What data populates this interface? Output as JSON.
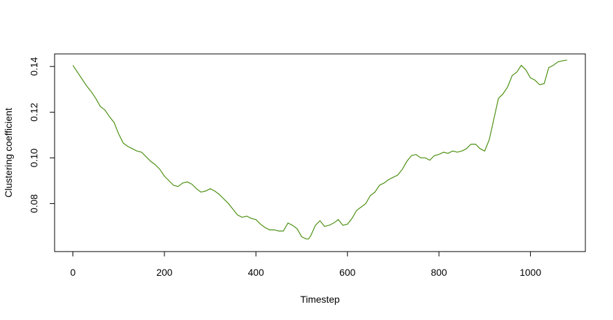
{
  "chart_data": {
    "type": "line",
    "title": "",
    "xlabel": "Timestep",
    "ylabel": "Clustering coefficient",
    "xlim": [
      -40,
      1120
    ],
    "ylim": [
      0.059,
      0.1455
    ],
    "xticks": [
      0,
      200,
      400,
      600,
      800,
      1000
    ],
    "yticks": [
      0.08,
      0.1,
      0.12,
      0.14
    ],
    "xtick_labels": [
      "0",
      "200",
      "400",
      "600",
      "800",
      "1000"
    ],
    "ytick_labels": [
      "0.08",
      "0.10",
      "0.12",
      "0.14"
    ],
    "grid": false,
    "legend": "none",
    "line_color": "#4a8f10",
    "series": [
      {
        "x": [
          0,
          10,
          20,
          30,
          40,
          50,
          60,
          70,
          80,
          90,
          100,
          110,
          120,
          130,
          140,
          150,
          160,
          170,
          180,
          190,
          200,
          210,
          220,
          230,
          240,
          250,
          260,
          270,
          280,
          290,
          300,
          310,
          320,
          330,
          340,
          350,
          360,
          370,
          380,
          390,
          400,
          410,
          420,
          430,
          440,
          450,
          460,
          470,
          480,
          490,
          500,
          510,
          515,
          520,
          530,
          540,
          550,
          560,
          570,
          580,
          590,
          600,
          610,
          620,
          630,
          640,
          650,
          660,
          670,
          680,
          690,
          700,
          710,
          720,
          730,
          740,
          750,
          760,
          770,
          780,
          790,
          800,
          810,
          820,
          830,
          840,
          850,
          860,
          870,
          880,
          890,
          900,
          910,
          920,
          930,
          940,
          950,
          960,
          970,
          980,
          990,
          1000,
          1010,
          1020,
          1030,
          1040,
          1050,
          1060,
          1070,
          1080
        ],
        "y": [
          0.1405,
          0.1375,
          0.1345,
          0.1315,
          0.129,
          0.126,
          0.1225,
          0.121,
          0.118,
          0.1155,
          0.1105,
          0.1065,
          0.105,
          0.104,
          0.103,
          0.1025,
          0.1005,
          0.0985,
          0.097,
          0.095,
          0.092,
          0.09,
          0.088,
          0.0875,
          0.089,
          0.0895,
          0.0885,
          0.0865,
          0.085,
          0.0855,
          0.0865,
          0.0855,
          0.084,
          0.082,
          0.08,
          0.0775,
          0.075,
          0.074,
          0.0745,
          0.0735,
          0.073,
          0.071,
          0.0695,
          0.0685,
          0.0685,
          0.068,
          0.068,
          0.0715,
          0.0705,
          0.069,
          0.0655,
          0.0645,
          0.0645,
          0.066,
          0.0705,
          0.0725,
          0.07,
          0.0705,
          0.0715,
          0.073,
          0.0705,
          0.071,
          0.0735,
          0.077,
          0.0785,
          0.08,
          0.0835,
          0.085,
          0.088,
          0.089,
          0.0905,
          0.0915,
          0.0925,
          0.095,
          0.0985,
          0.101,
          0.1015,
          0.1,
          0.1,
          0.099,
          0.101,
          0.1015,
          0.1025,
          0.102,
          0.103,
          0.1025,
          0.103,
          0.104,
          0.106,
          0.106,
          0.104,
          0.103,
          0.108,
          0.117,
          0.126,
          0.128,
          0.131,
          0.136,
          0.1375,
          0.1405,
          0.1385,
          0.135,
          0.134,
          0.132,
          0.1325,
          0.1395,
          0.1405,
          0.142,
          0.1425,
          0.1428
        ]
      }
    ]
  }
}
